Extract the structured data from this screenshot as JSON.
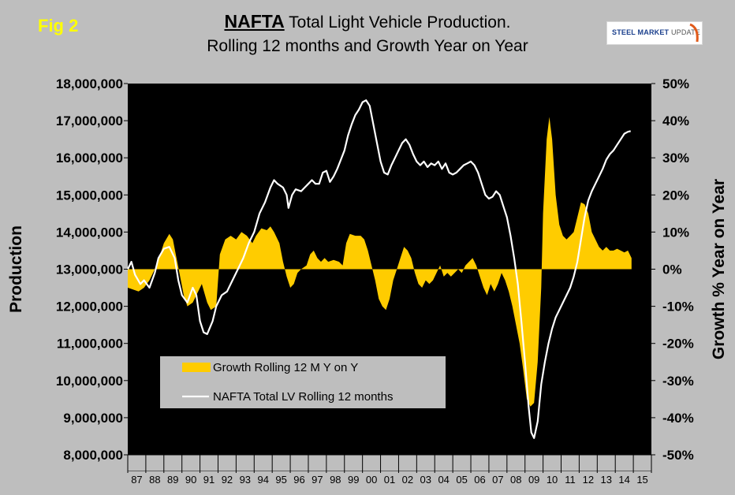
{
  "fig_label": "Fig 2",
  "title": {
    "bold": "NAFTA",
    "rest": " Total Light Vehicle Production.",
    "line2": "Rolling 12 months and Growth Year on Year"
  },
  "logo": {
    "brand": "STEEL MARKET",
    "suffix": "UPDATE"
  },
  "colors": {
    "background": "#bebebe",
    "plot_bg": "#000000",
    "growth": "#ffcc00",
    "production": "#ffffff",
    "fig_label": "#ffff00"
  },
  "chart_data": {
    "type": "area",
    "y_left": {
      "label": "Production",
      "range": [
        8000000,
        18000000
      ],
      "ticks": [
        "8,000,000",
        "9,000,000",
        "10,000,000",
        "11,000,000",
        "12,000,000",
        "13,000,000",
        "14,000,000",
        "15,000,000",
        "16,000,000",
        "17,000,000",
        "18,000,000"
      ]
    },
    "y_right": {
      "label": "Growth % Year on Year",
      "range": [
        -50,
        50
      ],
      "ticks": [
        "-50%",
        "-40%",
        "-30%",
        "-20%",
        "-10%",
        "0%",
        "10%",
        "20%",
        "30%",
        "40%",
        "50%"
      ]
    },
    "x_ticks": [
      "87",
      "88",
      "89",
      "90",
      "91",
      "92",
      "93",
      "94",
      "95",
      "96",
      "97",
      "98",
      "99",
      "00",
      "01",
      "02",
      "03",
      "04",
      "05",
      "06",
      "07",
      "08",
      "09",
      "10",
      "11",
      "12",
      "13",
      "14",
      "15"
    ],
    "x_range": [
      1987,
      2016
    ],
    "legend_position": "bottom-left",
    "series": [
      {
        "name": "Growth Rolling 12 M Y on Y",
        "kind": "area",
        "axis": "right",
        "points": [
          [
            1987.0,
            -5
          ],
          [
            1987.3,
            -5.5
          ],
          [
            1987.6,
            -6
          ],
          [
            1987.9,
            -5
          ],
          [
            1988.2,
            -3
          ],
          [
            1988.5,
            0
          ],
          [
            1988.8,
            4
          ],
          [
            1989.0,
            7
          ],
          [
            1989.3,
            9.5
          ],
          [
            1989.5,
            8
          ],
          [
            1989.7,
            3
          ],
          [
            1989.9,
            -2
          ],
          [
            1990.1,
            -7
          ],
          [
            1990.3,
            -10
          ],
          [
            1990.6,
            -9
          ],
          [
            1990.9,
            -6
          ],
          [
            1991.1,
            -4
          ],
          [
            1991.4,
            -9
          ],
          [
            1991.6,
            -11
          ],
          [
            1991.9,
            -10
          ],
          [
            1992.1,
            4
          ],
          [
            1992.4,
            8
          ],
          [
            1992.7,
            9
          ],
          [
            1993.0,
            8
          ],
          [
            1993.3,
            10
          ],
          [
            1993.6,
            9
          ],
          [
            1993.9,
            7
          ],
          [
            1994.1,
            9
          ],
          [
            1994.4,
            11
          ],
          [
            1994.7,
            10.5
          ],
          [
            1994.9,
            11.5
          ],
          [
            1995.1,
            10
          ],
          [
            1995.4,
            7
          ],
          [
            1995.6,
            2
          ],
          [
            1995.8,
            -2
          ],
          [
            1996.0,
            -5
          ],
          [
            1996.2,
            -4
          ],
          [
            1996.4,
            -1
          ],
          [
            1996.6,
            0
          ],
          [
            1996.9,
            1
          ],
          [
            1997.1,
            4
          ],
          [
            1997.3,
            5
          ],
          [
            1997.5,
            3
          ],
          [
            1997.7,
            2
          ],
          [
            1997.9,
            3
          ],
          [
            1998.1,
            2
          ],
          [
            1998.4,
            2.5
          ],
          [
            1998.7,
            2
          ],
          [
            1998.9,
            1
          ],
          [
            1999.1,
            7
          ],
          [
            1999.3,
            9.5
          ],
          [
            1999.6,
            9
          ],
          [
            1999.9,
            9
          ],
          [
            2000.1,
            8
          ],
          [
            2000.3,
            5
          ],
          [
            2000.5,
            1
          ],
          [
            2000.7,
            -3
          ],
          [
            2000.9,
            -8
          ],
          [
            2001.1,
            -10
          ],
          [
            2001.3,
            -11
          ],
          [
            2001.5,
            -8
          ],
          [
            2001.7,
            -3
          ],
          [
            2001.9,
            0
          ],
          [
            2002.1,
            3
          ],
          [
            2002.3,
            6
          ],
          [
            2002.5,
            5
          ],
          [
            2002.7,
            3
          ],
          [
            2002.9,
            -1
          ],
          [
            2003.1,
            -4
          ],
          [
            2003.3,
            -5
          ],
          [
            2003.5,
            -3
          ],
          [
            2003.7,
            -4
          ],
          [
            2003.9,
            -3
          ],
          [
            2004.1,
            -1
          ],
          [
            2004.3,
            1
          ],
          [
            2004.5,
            -2
          ],
          [
            2004.7,
            -1
          ],
          [
            2004.9,
            -2
          ],
          [
            2005.1,
            -1
          ],
          [
            2005.3,
            0
          ],
          [
            2005.5,
            -1
          ],
          [
            2005.7,
            1
          ],
          [
            2005.9,
            2
          ],
          [
            2006.1,
            3
          ],
          [
            2006.3,
            1
          ],
          [
            2006.5,
            -2
          ],
          [
            2006.7,
            -5
          ],
          [
            2006.9,
            -7
          ],
          [
            2007.1,
            -4
          ],
          [
            2007.3,
            -6
          ],
          [
            2007.5,
            -4
          ],
          [
            2007.7,
            -1
          ],
          [
            2007.9,
            -3
          ],
          [
            2008.1,
            -6
          ],
          [
            2008.3,
            -10
          ],
          [
            2008.5,
            -15
          ],
          [
            2008.7,
            -20
          ],
          [
            2008.9,
            -27
          ],
          [
            2009.1,
            -35
          ],
          [
            2009.3,
            -37
          ],
          [
            2009.5,
            -36
          ],
          [
            2009.7,
            -25
          ],
          [
            2009.9,
            -5
          ],
          [
            2010.0,
            15
          ],
          [
            2010.2,
            35
          ],
          [
            2010.35,
            41
          ],
          [
            2010.5,
            35
          ],
          [
            2010.7,
            20
          ],
          [
            2010.9,
            12
          ],
          [
            2011.1,
            9
          ],
          [
            2011.3,
            8
          ],
          [
            2011.5,
            9
          ],
          [
            2011.7,
            10
          ],
          [
            2011.9,
            14
          ],
          [
            2012.1,
            18
          ],
          [
            2012.3,
            17.5
          ],
          [
            2012.5,
            15
          ],
          [
            2012.7,
            10
          ],
          [
            2012.9,
            8
          ],
          [
            2013.1,
            6
          ],
          [
            2013.3,
            5
          ],
          [
            2013.5,
            6
          ],
          [
            2013.7,
            5
          ],
          [
            2013.9,
            5
          ],
          [
            2014.1,
            5.5
          ],
          [
            2014.3,
            5
          ],
          [
            2014.5,
            4.5
          ],
          [
            2014.7,
            5
          ],
          [
            2014.9,
            3
          ]
        ]
      },
      {
        "name": "NAFTA Total LV Rolling 12 months",
        "kind": "line",
        "axis": "left",
        "points": [
          [
            1987.0,
            13000000
          ],
          [
            1987.2,
            13200000
          ],
          [
            1987.4,
            12850000
          ],
          [
            1987.7,
            12600000
          ],
          [
            1987.9,
            12700000
          ],
          [
            1988.2,
            12500000
          ],
          [
            1988.5,
            12900000
          ],
          [
            1988.7,
            13300000
          ],
          [
            1989.0,
            13550000
          ],
          [
            1989.3,
            13600000
          ],
          [
            1989.6,
            13300000
          ],
          [
            1989.8,
            12700000
          ],
          [
            1990.0,
            12300000
          ],
          [
            1990.3,
            12100000
          ],
          [
            1990.6,
            12500000
          ],
          [
            1990.8,
            12300000
          ],
          [
            1991.0,
            11600000
          ],
          [
            1991.2,
            11300000
          ],
          [
            1991.4,
            11250000
          ],
          [
            1991.7,
            11600000
          ],
          [
            1991.9,
            12000000
          ],
          [
            1992.2,
            12300000
          ],
          [
            1992.5,
            12400000
          ],
          [
            1992.8,
            12700000
          ],
          [
            1993.1,
            13000000
          ],
          [
            1993.4,
            13300000
          ],
          [
            1993.7,
            13700000
          ],
          [
            1994.0,
            14000000
          ],
          [
            1994.3,
            14500000
          ],
          [
            1994.6,
            14800000
          ],
          [
            1994.9,
            15200000
          ],
          [
            1995.1,
            15400000
          ],
          [
            1995.3,
            15300000
          ],
          [
            1995.6,
            15200000
          ],
          [
            1995.8,
            15000000
          ],
          [
            1995.9,
            14650000
          ],
          [
            1996.1,
            15000000
          ],
          [
            1996.3,
            15150000
          ],
          [
            1996.6,
            15100000
          ],
          [
            1996.8,
            15200000
          ],
          [
            1997.0,
            15300000
          ],
          [
            1997.2,
            15400000
          ],
          [
            1997.4,
            15300000
          ],
          [
            1997.6,
            15300000
          ],
          [
            1997.8,
            15600000
          ],
          [
            1998.0,
            15650000
          ],
          [
            1998.2,
            15350000
          ],
          [
            1998.4,
            15500000
          ],
          [
            1998.6,
            15700000
          ],
          [
            1998.8,
            15950000
          ],
          [
            1999.0,
            16200000
          ],
          [
            1999.2,
            16600000
          ],
          [
            1999.4,
            16900000
          ],
          [
            1999.6,
            17150000
          ],
          [
            1999.8,
            17300000
          ],
          [
            2000.0,
            17500000
          ],
          [
            2000.2,
            17550000
          ],
          [
            2000.4,
            17400000
          ],
          [
            2000.6,
            16900000
          ],
          [
            2000.8,
            16400000
          ],
          [
            2001.0,
            15900000
          ],
          [
            2001.2,
            15600000
          ],
          [
            2001.4,
            15550000
          ],
          [
            2001.6,
            15800000
          ],
          [
            2001.8,
            16000000
          ],
          [
            2002.0,
            16200000
          ],
          [
            2002.2,
            16400000
          ],
          [
            2002.4,
            16500000
          ],
          [
            2002.6,
            16350000
          ],
          [
            2002.8,
            16100000
          ],
          [
            2003.0,
            15900000
          ],
          [
            2003.2,
            15800000
          ],
          [
            2003.4,
            15900000
          ],
          [
            2003.6,
            15750000
          ],
          [
            2003.8,
            15850000
          ],
          [
            2004.0,
            15800000
          ],
          [
            2004.2,
            15900000
          ],
          [
            2004.4,
            15700000
          ],
          [
            2004.6,
            15850000
          ],
          [
            2004.8,
            15600000
          ],
          [
            2005.0,
            15550000
          ],
          [
            2005.2,
            15600000
          ],
          [
            2005.4,
            15700000
          ],
          [
            2005.6,
            15800000
          ],
          [
            2005.8,
            15850000
          ],
          [
            2006.0,
            15900000
          ],
          [
            2006.2,
            15800000
          ],
          [
            2006.4,
            15600000
          ],
          [
            2006.6,
            15300000
          ],
          [
            2006.8,
            15000000
          ],
          [
            2007.0,
            14900000
          ],
          [
            2007.2,
            14950000
          ],
          [
            2007.4,
            15100000
          ],
          [
            2007.6,
            15000000
          ],
          [
            2007.8,
            14700000
          ],
          [
            2008.0,
            14400000
          ],
          [
            2008.2,
            13900000
          ],
          [
            2008.4,
            13300000
          ],
          [
            2008.6,
            12600000
          ],
          [
            2008.8,
            11600000
          ],
          [
            2009.0,
            10500000
          ],
          [
            2009.2,
            9300000
          ],
          [
            2009.35,
            8600000
          ],
          [
            2009.5,
            8450000
          ],
          [
            2009.7,
            8900000
          ],
          [
            2009.9,
            9900000
          ],
          [
            2010.1,
            10500000
          ],
          [
            2010.3,
            11000000
          ],
          [
            2010.5,
            11400000
          ],
          [
            2010.7,
            11700000
          ],
          [
            2010.9,
            11900000
          ],
          [
            2011.1,
            12100000
          ],
          [
            2011.3,
            12300000
          ],
          [
            2011.5,
            12500000
          ],
          [
            2011.7,
            12800000
          ],
          [
            2011.9,
            13200000
          ],
          [
            2012.1,
            13800000
          ],
          [
            2012.3,
            14400000
          ],
          [
            2012.5,
            14850000
          ],
          [
            2012.7,
            15100000
          ],
          [
            2012.9,
            15300000
          ],
          [
            2013.1,
            15500000
          ],
          [
            2013.3,
            15700000
          ],
          [
            2013.5,
            15950000
          ],
          [
            2013.7,
            16100000
          ],
          [
            2013.9,
            16200000
          ],
          [
            2014.1,
            16350000
          ],
          [
            2014.3,
            16500000
          ],
          [
            2014.5,
            16650000
          ],
          [
            2014.7,
            16700000
          ],
          [
            2014.85,
            16720000
          ]
        ]
      }
    ]
  }
}
